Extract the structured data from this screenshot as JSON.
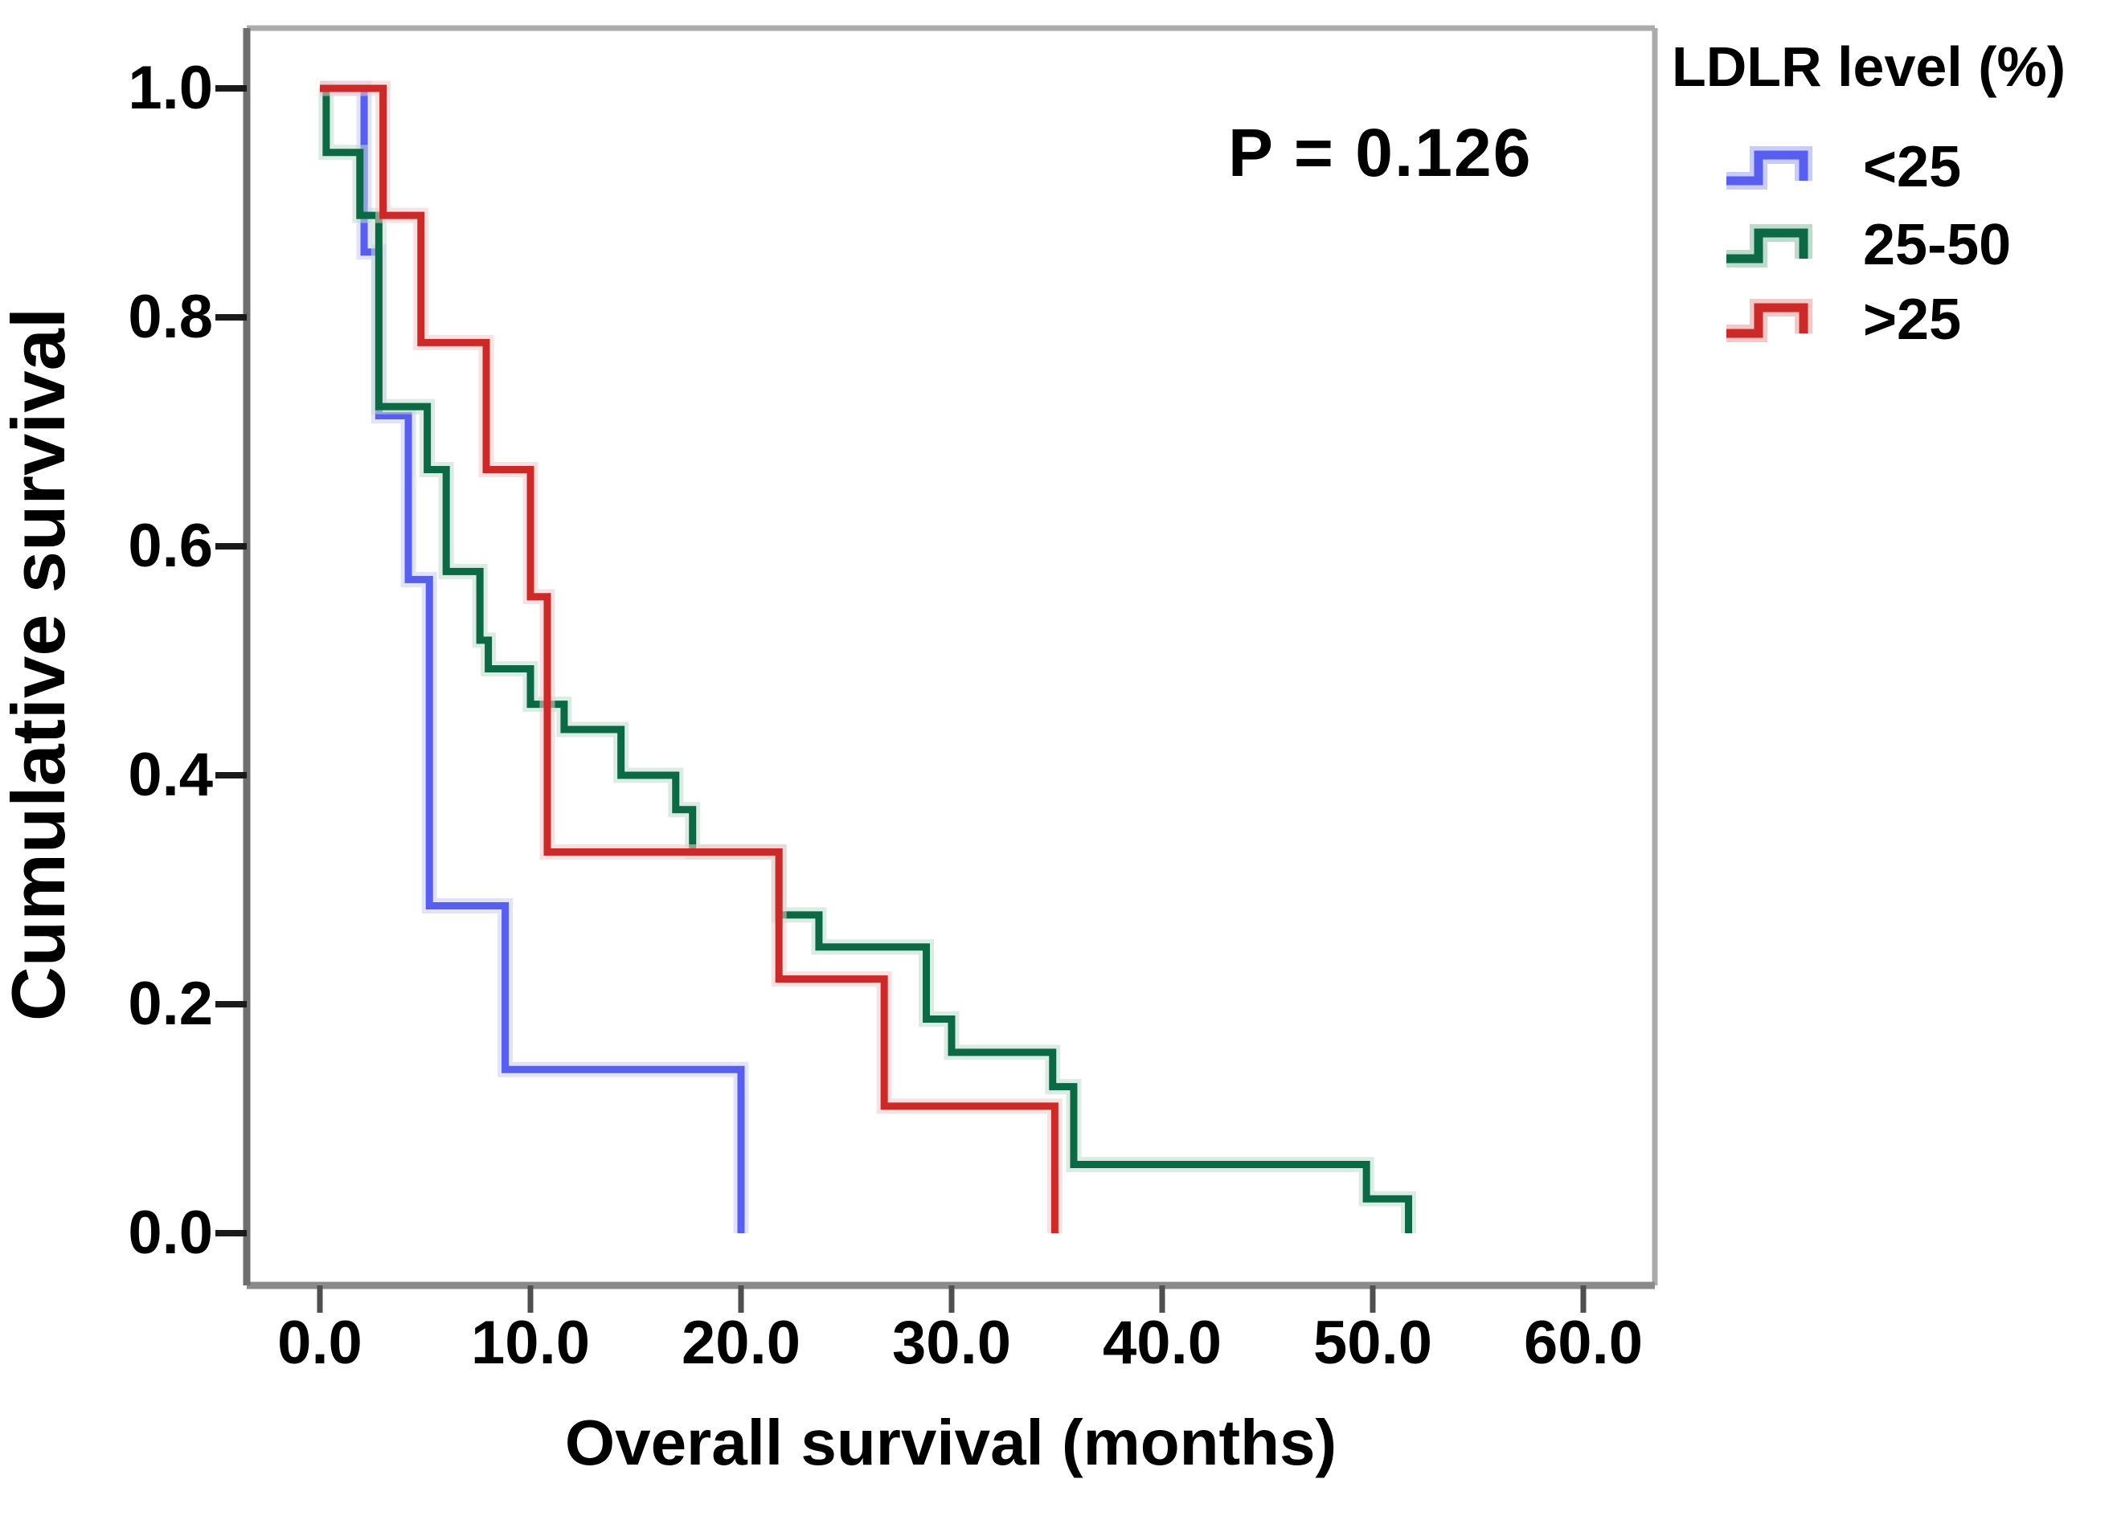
{
  "p_value_text": "P = 0.126",
  "legend": {
    "title": "LDLR level (%)",
    "entries": [
      {
        "label": "<25",
        "color": "#585ef0",
        "halo": "#c9cbfa"
      },
      {
        "label": "25-50",
        "color": "#0b6a43",
        "halo": "#bedccd"
      },
      {
        "label": ">25",
        "color": "#cc2929",
        "halo": "#f5c8c8"
      }
    ]
  },
  "colors": {
    "border_gray": "#ababab",
    "bottom_axis_gray": "#8a8a8a",
    "left_axis_gray": "#6e6e6e",
    "bottom_tick": "#4f4f4f",
    "left_tick": "#1a1a1a",
    "text": "#000000",
    "background": "#ffffff"
  },
  "chart_data": {
    "type": "line",
    "subtype": "kaplan-meier-step",
    "title": "",
    "xlabel": "Overall survival (months)",
    "ylabel": "Cumulative survival",
    "annotation": {
      "text": "P = 0.126",
      "position": "upper right inside plot"
    },
    "legend_position": "outside upper right",
    "grid": false,
    "xlim": [
      -3.5,
      63.5
    ],
    "ylim": [
      -0.046,
      1.053
    ],
    "x_ticks": {
      "values": [
        0,
        10,
        20,
        30,
        40,
        50,
        60
      ],
      "labels": [
        "0.0",
        "10.0",
        "20.0",
        "30.0",
        "40.0",
        "50.0",
        "60.0"
      ]
    },
    "y_ticks": {
      "values": [
        1.0,
        0.8,
        0.6,
        0.4,
        0.2,
        0.0
      ],
      "labels": [
        "1.0",
        "0.8",
        "0.6",
        "0.4",
        "0.2",
        "0.0"
      ]
    },
    "series": [
      {
        "name": "<25",
        "color": "#585ef0",
        "halo": "#c9cbfa",
        "points": [
          [
            0,
            1.0
          ],
          [
            2.1,
            0.857
          ],
          [
            2.8,
            0.714
          ],
          [
            4.2,
            0.571
          ],
          [
            5.2,
            0.286
          ],
          [
            8.8,
            0.143
          ],
          [
            20,
            0
          ]
        ]
      },
      {
        "name": "25-50",
        "color": "#0b6a43",
        "halo": "#bedccd",
        "points": [
          [
            0,
            1.0
          ],
          [
            0.3,
            0.944
          ],
          [
            1.9,
            0.889
          ],
          [
            2.8,
            0.722
          ],
          [
            5.1,
            0.667
          ],
          [
            6.0,
            0.578
          ],
          [
            7.6,
            0.518
          ],
          [
            8.0,
            0.493
          ],
          [
            10.0,
            0.462
          ],
          [
            11.6,
            0.44
          ],
          [
            14.3,
            0.4
          ],
          [
            16.9,
            0.37
          ],
          [
            17.7,
            0.333
          ],
          [
            21.8,
            0.278
          ],
          [
            23.7,
            0.25
          ],
          [
            28.8,
            0.187
          ],
          [
            30.0,
            0.158
          ],
          [
            34.8,
            0.128
          ],
          [
            35.8,
            0.06
          ],
          [
            49.7,
            0.03
          ],
          [
            51.7,
            0
          ]
        ]
      },
      {
        "name": ">25",
        "color": "#cc2929",
        "halo": "#f5c8c8",
        "points": [
          [
            0,
            1.0
          ],
          [
            3.0,
            0.889
          ],
          [
            4.8,
            0.778
          ],
          [
            7.9,
            0.667
          ],
          [
            10.0,
            0.556
          ],
          [
            10.8,
            0.333
          ],
          [
            21.8,
            0.222
          ],
          [
            26.8,
            0.111
          ],
          [
            34.9,
            0
          ]
        ]
      }
    ]
  }
}
